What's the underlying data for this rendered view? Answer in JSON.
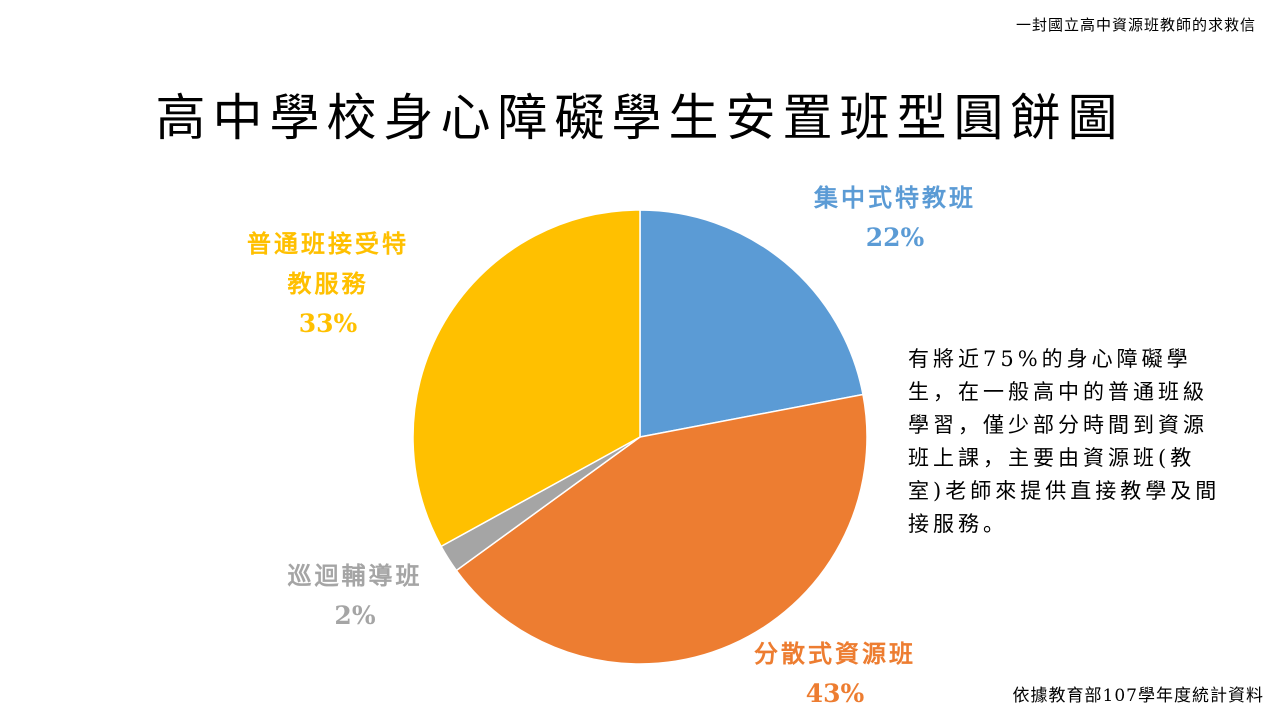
{
  "header": {
    "top_note": "一封國立高中資源班教師的求救信"
  },
  "footer": {
    "source": "依據教育部107學年度統計資料"
  },
  "annotation": {
    "text": "有將近75%的身心障礙學生，在一般高中的普通班級學習，僅少部分時間到資源班上課，主要由資源班(教室)老師來提供直接教學及間接服務。"
  },
  "chart_data": {
    "type": "pie",
    "title": "高中學校身心障礙學生安置班型圓餅圖",
    "legend": "none (data labels beside slices)",
    "slices": [
      {
        "label_lines": [
          "集中式特教班"
        ],
        "label": "集中式特教班",
        "value": 22,
        "value_label": "22%",
        "color": "#5B9BD5"
      },
      {
        "label_lines": [
          "分散式資源班"
        ],
        "label": "分散式資源班",
        "value": 43,
        "value_label": "43%",
        "color": "#ED7D31"
      },
      {
        "label_lines": [
          "巡迴輔導班"
        ],
        "label": "巡迴輔導班",
        "value": 2,
        "value_label": "2%",
        "color": "#A5A5A5"
      },
      {
        "label_lines": [
          "普通班接受特",
          "教服務"
        ],
        "label": "普通班接受特教服務",
        "value": 33,
        "value_label": "33%",
        "color": "#FFC000"
      }
    ]
  }
}
